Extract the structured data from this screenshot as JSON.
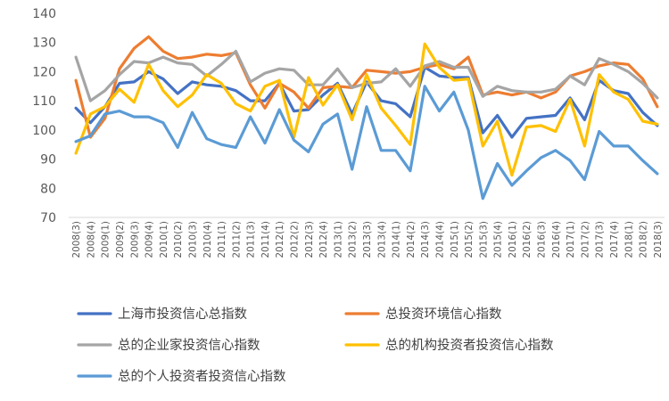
{
  "chart_data": {
    "type": "line",
    "title": "",
    "xlabel": "",
    "ylabel": "",
    "ylim": [
      70,
      140
    ],
    "yticks": [
      70,
      80,
      90,
      100,
      110,
      120,
      130,
      140
    ],
    "grid": "none",
    "legend_position": "bottom",
    "x": [
      "2008(3)",
      "2008(4)",
      "2009(1)",
      "2009(2)",
      "2009(3)",
      "2009(4)",
      "2010(1)",
      "2010(2)",
      "2010(3)",
      "2010(4)",
      "2011(1)",
      "2011(2)",
      "2011(3)",
      "2011(4)",
      "2012(1)",
      "2012(2)",
      "2012(3)",
      "2012(4)",
      "2013(1)",
      "2013(2)",
      "2013(3)",
      "2013(4)",
      "2014(1)",
      "2014(2)",
      "2014(3)",
      "2014(4)",
      "2015(1)",
      "2015(2)",
      "2015(3)",
      "2015(4)",
      "2016(1)",
      "2016(2)",
      "2016(3)",
      "2016(4)",
      "2017(1)",
      "2017(2)",
      "2017(3)",
      "2017(4)",
      "2018(1)",
      "2018(2)",
      "2018(3)"
    ],
    "series": [
      {
        "name": "上海市投资信心总指数",
        "color": "#4472C4",
        "values": [
          107.5,
          102.5,
          108,
          116,
          116.5,
          120,
          117.5,
          112.5,
          116.5,
          115.5,
          115,
          113.5,
          110,
          110,
          116,
          106.5,
          107,
          112,
          116,
          105.5,
          116.5,
          110,
          109,
          104.5,
          121.5,
          118.5,
          118,
          118,
          99,
          105,
          97.5,
          104,
          104.5,
          105,
          111,
          103.5,
          117,
          113.5,
          112.5,
          106,
          101.5
        ]
      },
      {
        "name": "总投资环境信心指数",
        "color": "#ED7D31",
        "values": [
          117,
          97.5,
          104,
          121,
          128,
          132,
          127,
          124.5,
          125,
          126,
          125.5,
          126.5,
          115.5,
          107.5,
          116,
          113,
          107.5,
          114.5,
          115,
          114.5,
          120.5,
          120,
          119.5,
          120,
          121.5,
          122.5,
          121,
          125,
          112,
          113,
          112,
          113,
          111,
          113,
          118.5,
          120,
          122,
          123,
          122.5,
          117.5,
          108
        ]
      },
      {
        "name": "总的企业家投资信心指数",
        "color": "#A5A5A5",
        "values": [
          125,
          110,
          113.5,
          119,
          123.5,
          123,
          125,
          123,
          122.5,
          118.5,
          122.5,
          127,
          116.5,
          119.5,
          121,
          120.5,
          115.5,
          115.5,
          121,
          114.5,
          116,
          116.5,
          121,
          115,
          122,
          123.5,
          121.5,
          121.5,
          111.5,
          115,
          113.5,
          113,
          113,
          114,
          118.5,
          115.5,
          124.5,
          122.5,
          120,
          116,
          111
        ]
      },
      {
        "name": "总的机构投资者投资信心指数",
        "color": "#FFC000",
        "values": [
          92,
          105.5,
          108,
          114,
          109.5,
          122.5,
          113.5,
          108,
          112,
          119,
          116,
          109,
          106.5,
          115,
          117,
          97.5,
          118,
          108.5,
          115.5,
          103.5,
          119,
          107.5,
          101.5,
          95,
          129.5,
          121.5,
          117,
          117.5,
          94.5,
          103,
          84.5,
          101,
          101.5,
          99.5,
          110.5,
          94.5,
          119,
          113,
          110.5,
          103,
          102
        ]
      },
      {
        "name": "总的个人投资者投资信心指数",
        "color": "#5B9BD5",
        "values": [
          96,
          98,
          105.5,
          106.5,
          104.5,
          104.5,
          102.5,
          94,
          106,
          97,
          95,
          94,
          104.5,
          95.5,
          107,
          96.5,
          92.5,
          102,
          105.5,
          86.5,
          108,
          93,
          93,
          86,
          115,
          106.5,
          113,
          100,
          76.5,
          88.5,
          81,
          86,
          90.5,
          93,
          89.5,
          83,
          99.5,
          94.5,
          94.5,
          89.5,
          85
        ]
      }
    ]
  }
}
